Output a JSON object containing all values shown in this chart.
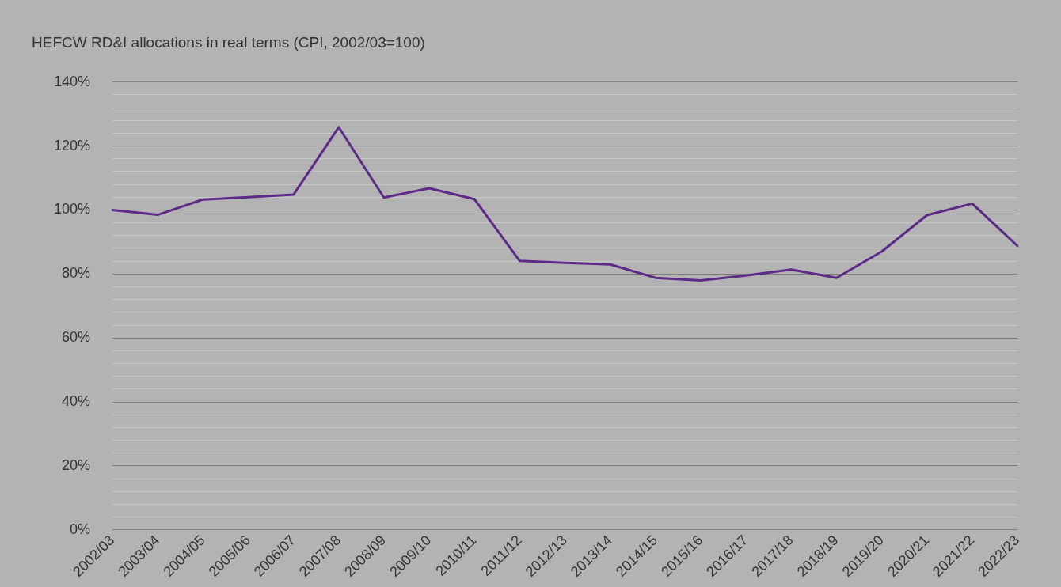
{
  "chart_data": {
    "type": "line",
    "title": "HEFCW RD&I allocations in real terms (CPI, 2002/03=100)",
    "categories": [
      "2002/03",
      "2003/04",
      "2004/05",
      "2005/06",
      "2006/07",
      "2007/08",
      "2008/09",
      "2009/10",
      "2010/11",
      "2011/12",
      "2012/13",
      "2013/14",
      "2014/15",
      "2015/16",
      "2016/17",
      "2017/18",
      "2018/19",
      "2019/20",
      "2020/21",
      "2021/22",
      "2022/23"
    ],
    "series": [
      {
        "color": "#5c2a87",
        "values": [
          100,
          98.5,
          103.3,
          104,
          104.8,
          125.9,
          103.9,
          106.8,
          103.4,
          84.1,
          83.5,
          83,
          78.8,
          78,
          79.5,
          81.4,
          78.8,
          87,
          98.4,
          102,
          88.8
        ]
      }
    ],
    "ylim": [
      0,
      140
    ],
    "yticks": [
      {
        "value": 0,
        "label": "0%"
      },
      {
        "value": 4,
        "label": null
      },
      {
        "value": 8,
        "label": null
      },
      {
        "value": 12,
        "label": null
      },
      {
        "value": 16,
        "label": null
      },
      {
        "value": 20,
        "label": "20%"
      },
      {
        "value": 24,
        "label": null
      },
      {
        "value": 28,
        "label": null
      },
      {
        "value": 32,
        "label": null
      },
      {
        "value": 36,
        "label": null
      },
      {
        "value": 40,
        "label": "40%"
      },
      {
        "value": 44,
        "label": null
      },
      {
        "value": 48,
        "label": null
      },
      {
        "value": 52,
        "label": null
      },
      {
        "value": 56,
        "label": null
      },
      {
        "value": 60,
        "label": "60%"
      },
      {
        "value": 64,
        "label": null
      },
      {
        "value": 68,
        "label": null
      },
      {
        "value": 72,
        "label": null
      },
      {
        "value": 76,
        "label": null
      },
      {
        "value": 80,
        "label": "80%"
      },
      {
        "value": 84,
        "label": null
      },
      {
        "value": 88,
        "label": null
      },
      {
        "value": 92,
        "label": null
      },
      {
        "value": 96,
        "label": null
      },
      {
        "value": 100,
        "label": "100%"
      },
      {
        "value": 104,
        "label": null
      },
      {
        "value": 108,
        "label": null
      },
      {
        "value": 112,
        "label": null
      },
      {
        "value": 116,
        "label": null
      },
      {
        "value": 120,
        "label": "120%"
      },
      {
        "value": 124,
        "label": null
      },
      {
        "value": 128,
        "label": null
      },
      {
        "value": 132,
        "label": null
      },
      {
        "value": 136,
        "label": null
      },
      {
        "value": 140,
        "label": "140%"
      }
    ],
    "grid": "y",
    "legend": false,
    "marker": "none",
    "line_style": "solid"
  }
}
